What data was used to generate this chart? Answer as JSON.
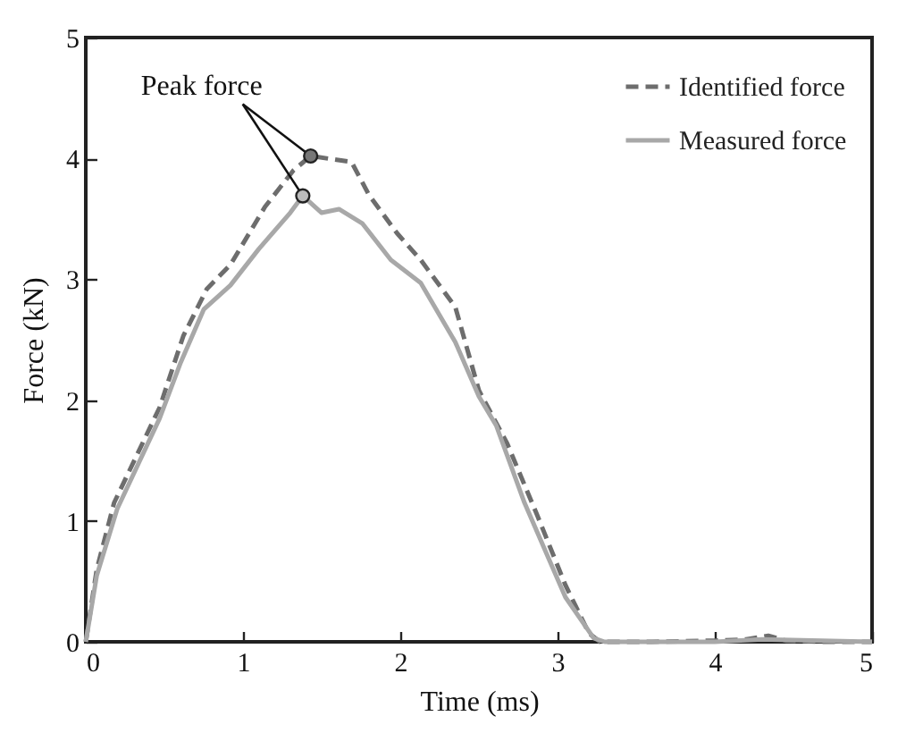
{
  "chart_data": {
    "type": "line",
    "xlabel": "Time (ms)",
    "ylabel": "Force (kN)",
    "xlim": [
      0,
      5
    ],
    "ylim": [
      0,
      5
    ],
    "xticks": [
      0,
      1,
      2,
      3,
      4,
      5
    ],
    "yticks": [
      0,
      1,
      2,
      3,
      4,
      5
    ],
    "legend": "top right",
    "annotations": [
      {
        "text": "Peak force",
        "x": 1.43,
        "y": 4.02
      }
    ],
    "series": [
      {
        "name": "Identified force",
        "line_style": "dashed",
        "color": "#6d6d6d",
        "x": [
          0,
          0.07,
          0.18,
          0.29,
          0.47,
          0.62,
          0.77,
          0.92,
          1.14,
          1.32,
          1.43,
          1.69,
          1.8,
          1.98,
          2.13,
          2.35,
          2.5,
          2.68,
          2.87,
          3.05,
          3.2,
          3.27,
          3.6,
          4.0,
          4.2,
          4.34,
          4.45,
          4.7,
          5.0
        ],
        "values": [
          0,
          0.6,
          1.15,
          1.45,
          1.94,
          2.53,
          2.92,
          3.12,
          3.6,
          3.9,
          4.02,
          3.97,
          3.7,
          3.38,
          3.16,
          2.77,
          2.08,
          1.64,
          1.05,
          0.47,
          0.07,
          0,
          0,
          0.01,
          0.02,
          0.05,
          0.01,
          0,
          0
        ]
      },
      {
        "name": "Measured force",
        "line_style": "solid",
        "color": "#a8a8a8",
        "x": [
          0,
          0.07,
          0.2,
          0.47,
          0.6,
          0.75,
          0.92,
          1.1,
          1.3,
          1.38,
          1.5,
          1.61,
          1.76,
          1.94,
          2.13,
          2.35,
          2.5,
          2.61,
          2.79,
          3.05,
          3.23,
          3.3,
          4.0,
          4.3,
          5.0
        ],
        "values": [
          0,
          0.55,
          1.1,
          1.85,
          2.3,
          2.75,
          2.95,
          3.25,
          3.55,
          3.69,
          3.55,
          3.58,
          3.46,
          3.16,
          2.97,
          2.48,
          2.03,
          1.79,
          1.15,
          0.37,
          0.03,
          0,
          0,
          0.02,
          0
        ]
      },
      {
        "type": "scatter",
        "marker": "circle",
        "color": "#777777",
        "x": [
          1.43
        ],
        "values": [
          4.02
        ]
      },
      {
        "type": "scatter",
        "marker": "circle",
        "color": "#bbbbbb",
        "x": [
          1.38
        ],
        "values": [
          3.69
        ]
      }
    ]
  }
}
